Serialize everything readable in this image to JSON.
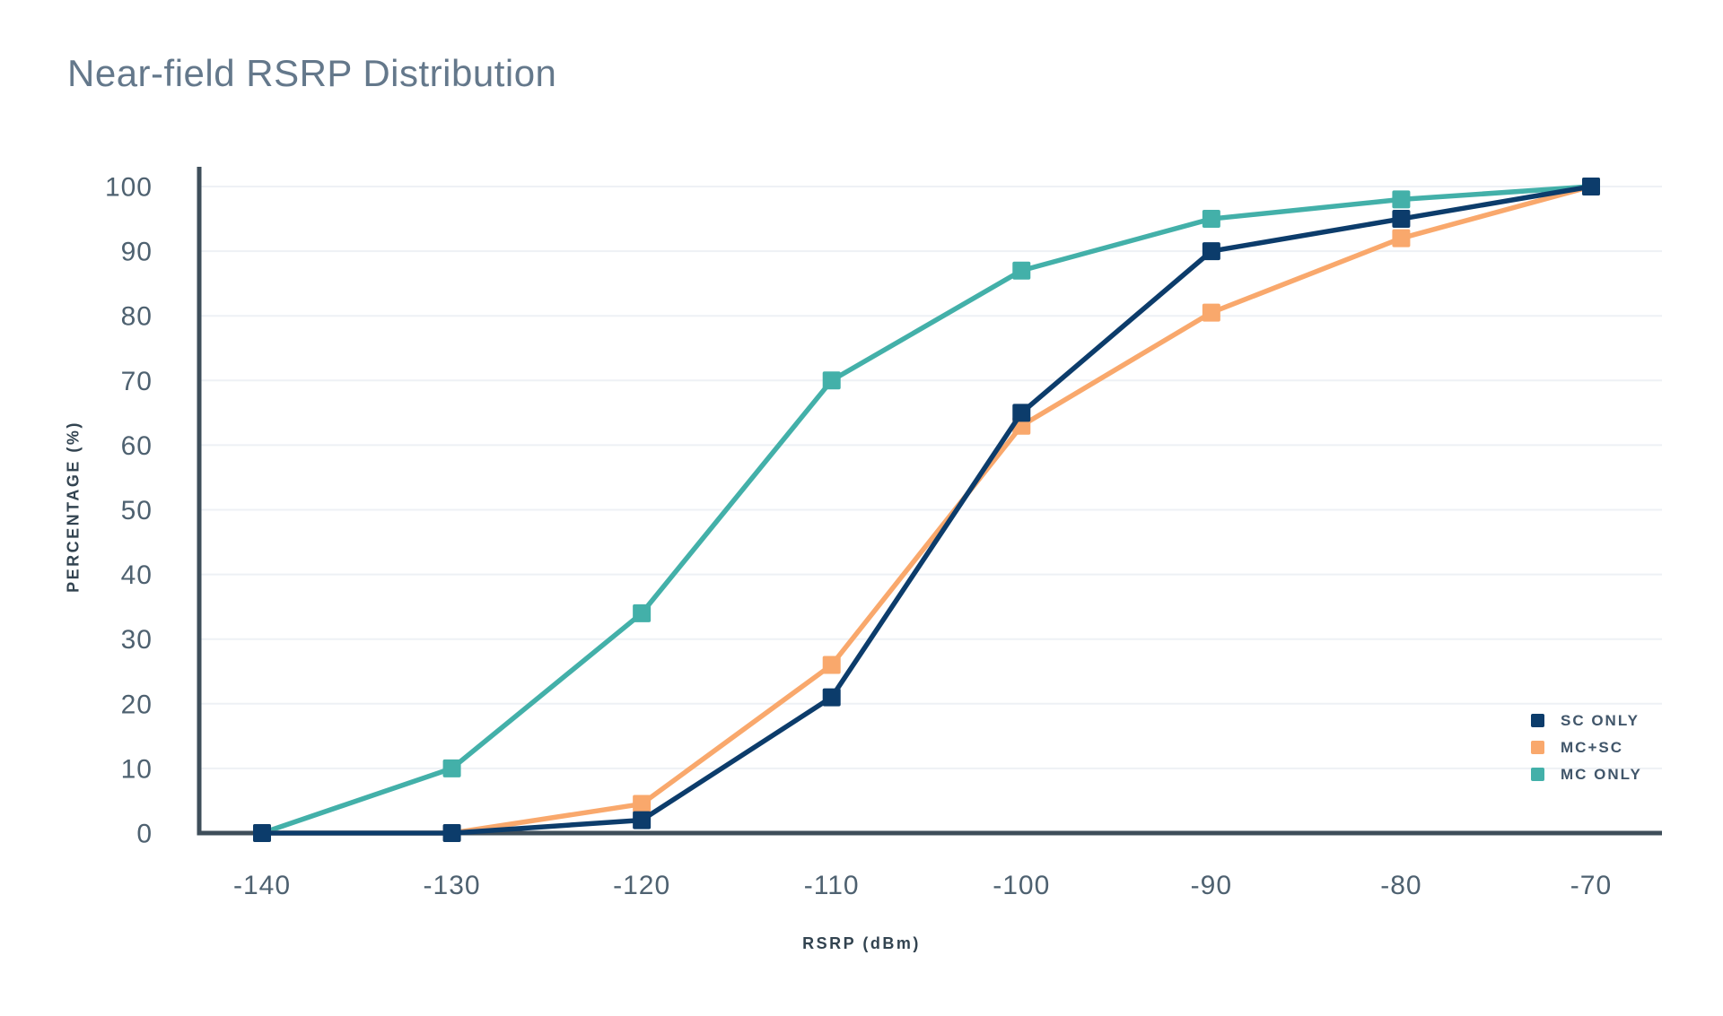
{
  "title": "Near-field RSRP Distribution",
  "colors": {
    "background": "#ffffff",
    "title_text": "#64788b",
    "axis_line": "#3e4e5a",
    "gridline": "#eef1f5",
    "tick_text": "#4e6170",
    "axis_title_text": "#324350",
    "legend_text": "#41566a"
  },
  "chart_data": {
    "type": "line",
    "title": "Near-field RSRP Distribution",
    "xlabel": "RSRP (dBm)",
    "ylabel": "PERCENTAGE (%)",
    "x": [
      -140,
      -130,
      -120,
      -110,
      -100,
      -90,
      -80,
      -70
    ],
    "xtick_labels": [
      "-140",
      "-130",
      "-120",
      "-110",
      "-100",
      "-90",
      "-80",
      "-70"
    ],
    "yticks": [
      0,
      10,
      20,
      30,
      40,
      50,
      60,
      70,
      80,
      90,
      100
    ],
    "ylim": [
      0,
      100
    ],
    "grid": "horizontal",
    "legend_position": "inside-bottom-right",
    "marker": "square",
    "series": [
      {
        "name": "SC ONLY",
        "color": "#0c3c6b",
        "values": [
          0,
          0,
          2,
          21,
          65,
          90,
          95,
          100
        ]
      },
      {
        "name": "MC+SC",
        "color": "#f9a86c",
        "values": [
          0,
          0,
          4.5,
          26,
          63,
          80.5,
          92,
          100
        ]
      },
      {
        "name": "MC ONLY",
        "color": "#43b0a9",
        "values": [
          0,
          10,
          34,
          70,
          87,
          95,
          98,
          100
        ]
      }
    ]
  }
}
